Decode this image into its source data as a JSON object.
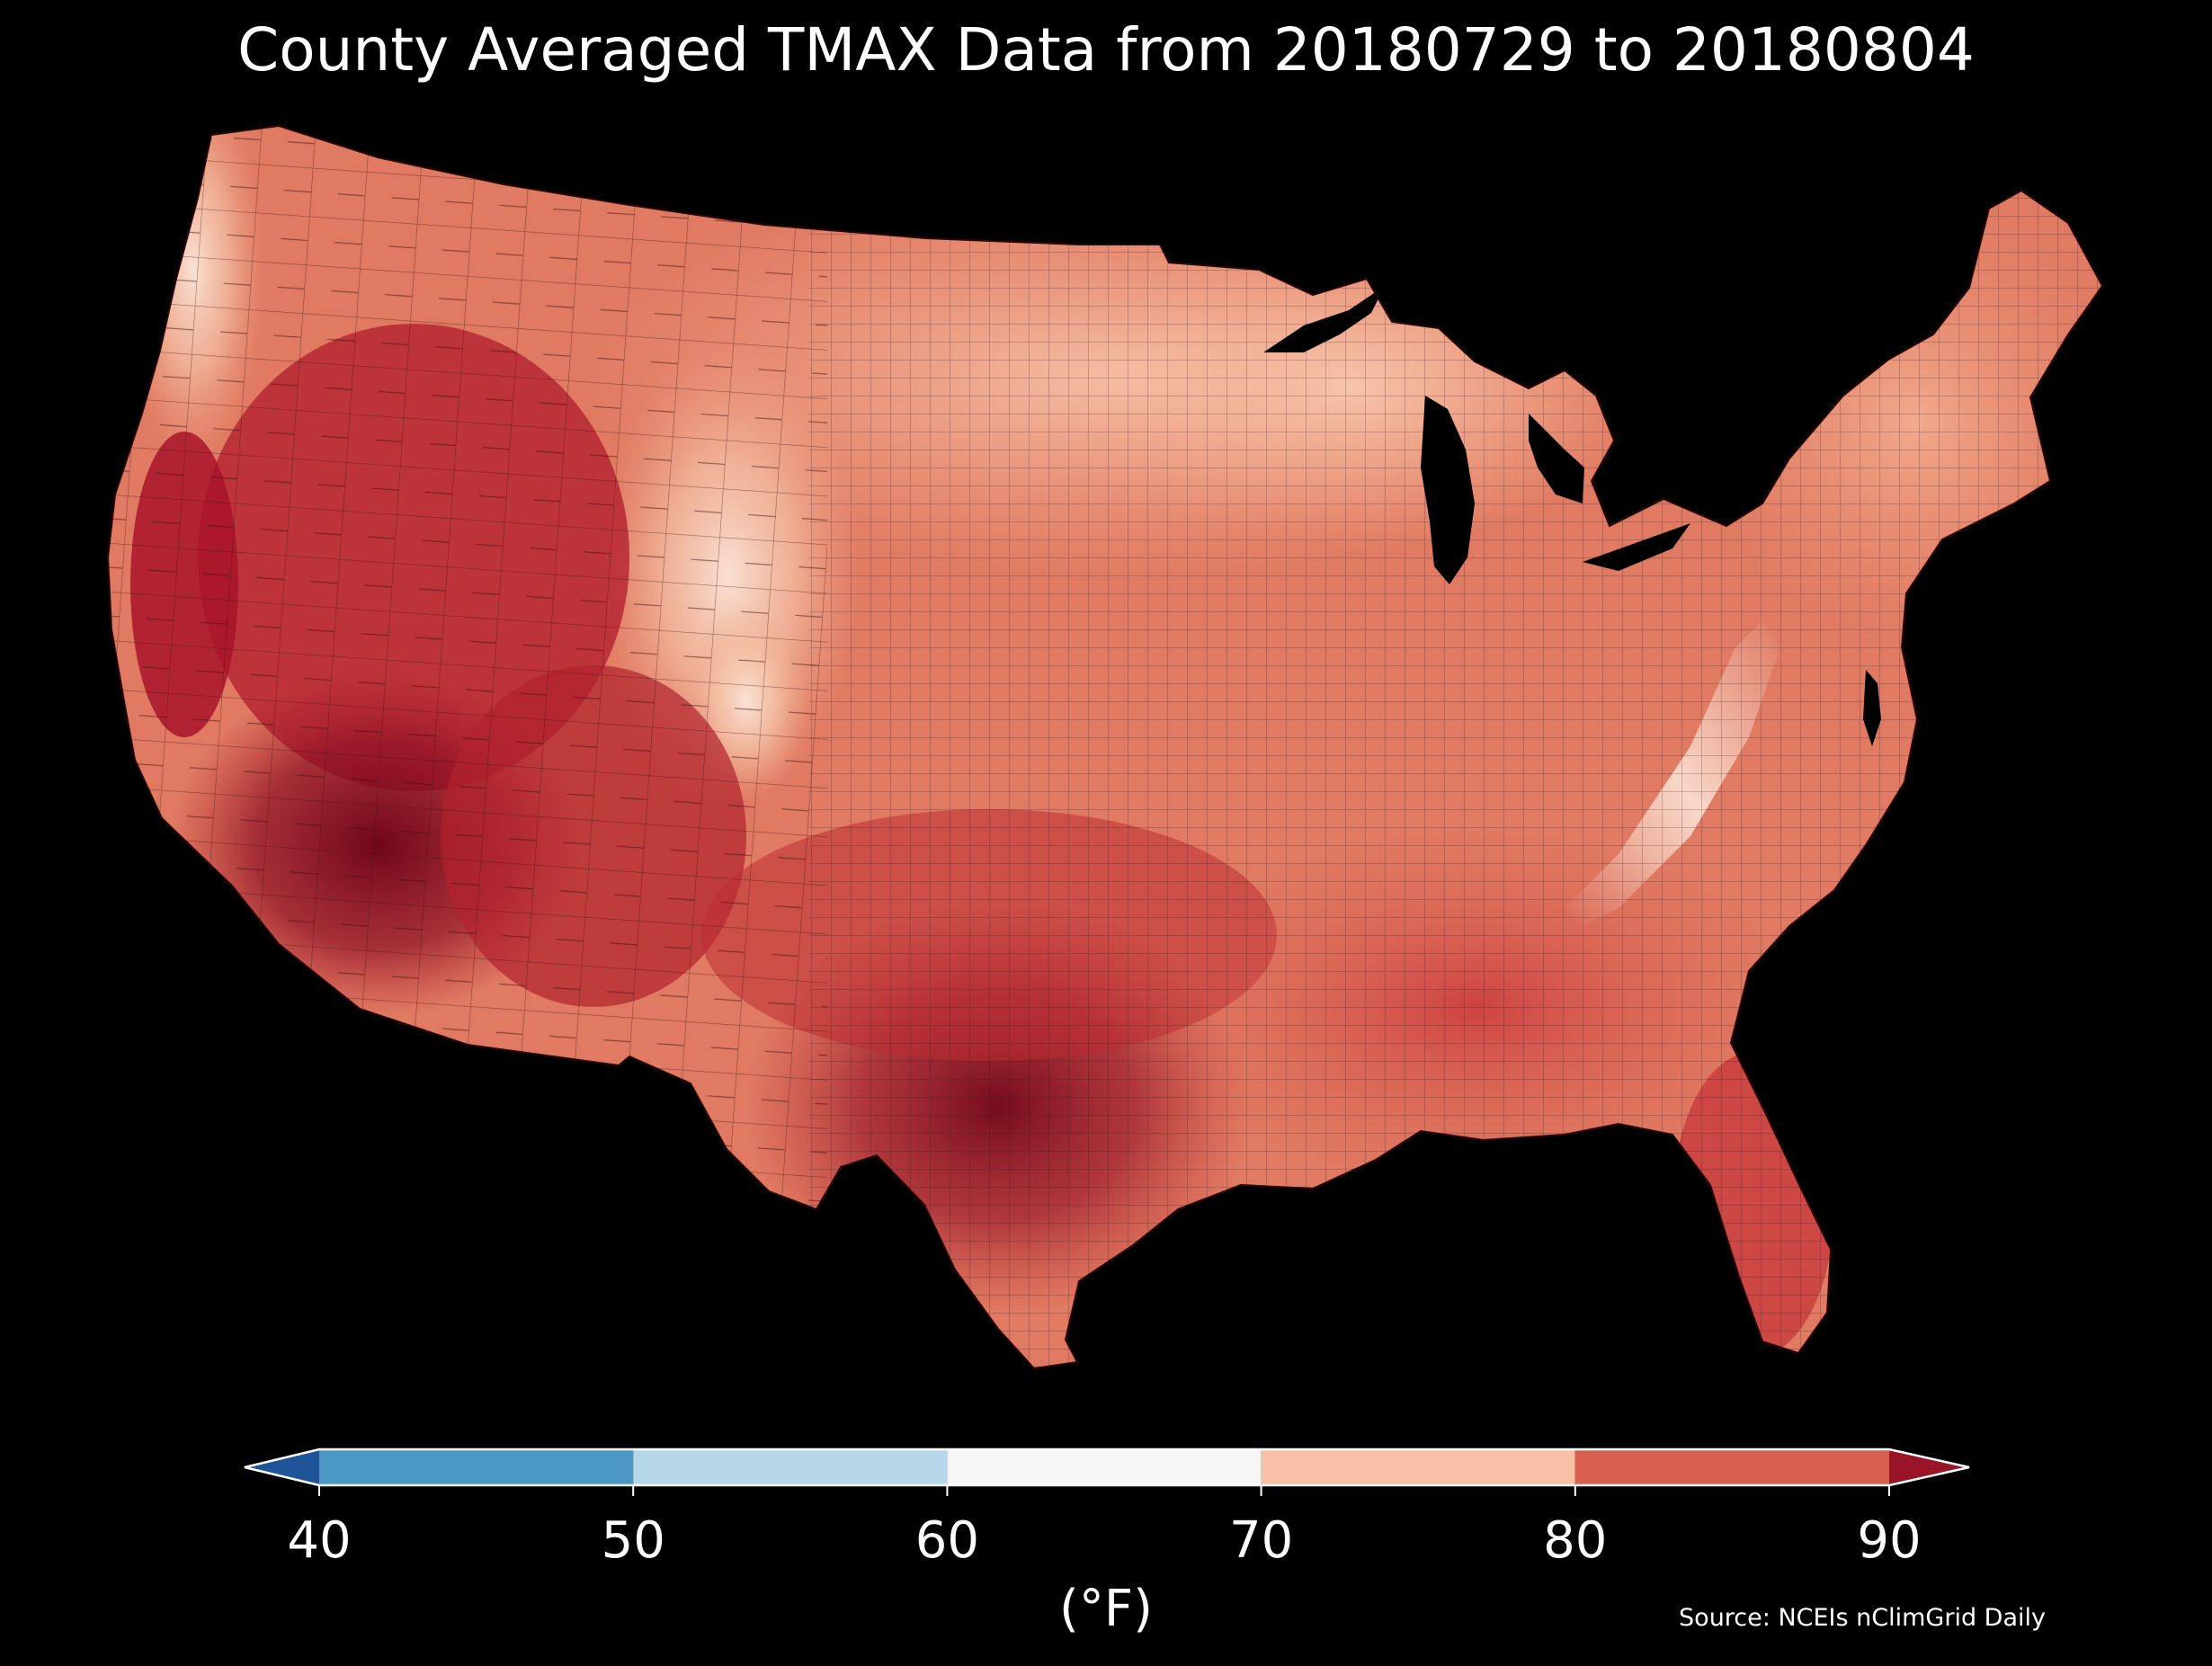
{
  "figure": {
    "title": "County Averaged TMAX Data from 20180729 to 20180804",
    "background": "#000000",
    "source": "Source: NCEIs nClimGrid Daily"
  },
  "map": {
    "region": "Contiguous United States (counties)",
    "projection": "equal-area conic",
    "county_border_color": "#3a0d0d"
  },
  "colorbar": {
    "unit_label": "(°F)",
    "ticks": [
      "40",
      "50",
      "60",
      "70",
      "80",
      "90"
    ],
    "extend": "both",
    "outline_color": "#ffffff",
    "under_color": "#1f5598",
    "over_color": "#9a1428",
    "bins": [
      {
        "from": 40,
        "to": 50,
        "color": "#4b98c7"
      },
      {
        "from": 50,
        "to": 60,
        "color": "#b6d7e9"
      },
      {
        "from": 60,
        "to": 70,
        "color": "#f6f6f6"
      },
      {
        "from": 70,
        "to": 80,
        "color": "#f8c0a5"
      },
      {
        "from": 80,
        "to": 90,
        "color": "#d8604f"
      }
    ]
  }
}
